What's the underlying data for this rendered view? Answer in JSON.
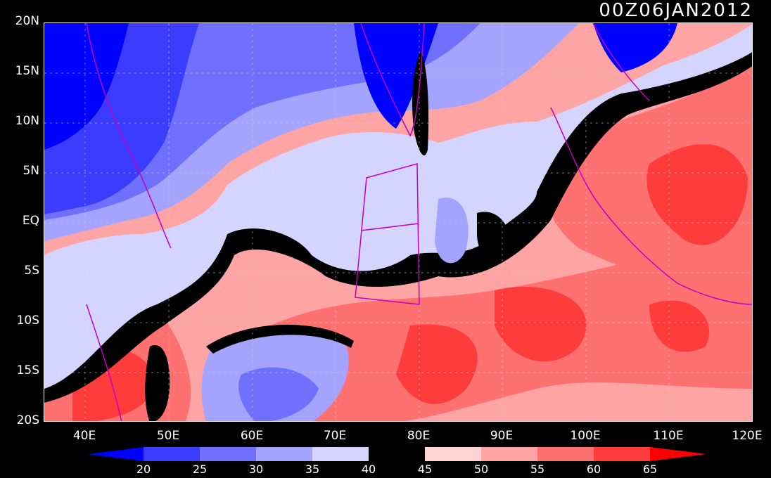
{
  "title": "00Z06JAN2012",
  "lat_labels": [
    "20N",
    "15N",
    "10N",
    "5N",
    "EQ",
    "5S",
    "10S",
    "15S",
    "20S"
  ],
  "lon_labels": [
    "40E",
    "50E",
    "60E",
    "70E",
    "80E",
    "90E",
    "100E",
    "110E",
    "120E"
  ],
  "map": {
    "lon_range": [
      35,
      120
    ],
    "lat_range": [
      -20,
      20
    ],
    "grid": true
  },
  "colorbar": {
    "levels": [
      "20",
      "25",
      "30",
      "35",
      "40",
      "45",
      "50",
      "55",
      "60",
      "65"
    ],
    "colors": [
      "#0000ff",
      "#3c3cff",
      "#7070ff",
      "#a4a4ff",
      "#d4d4ff",
      "#000000",
      "#ffd4d4",
      "#ffa4a4",
      "#ff7070",
      "#ff3c3c",
      "#ff0000"
    ]
  }
}
